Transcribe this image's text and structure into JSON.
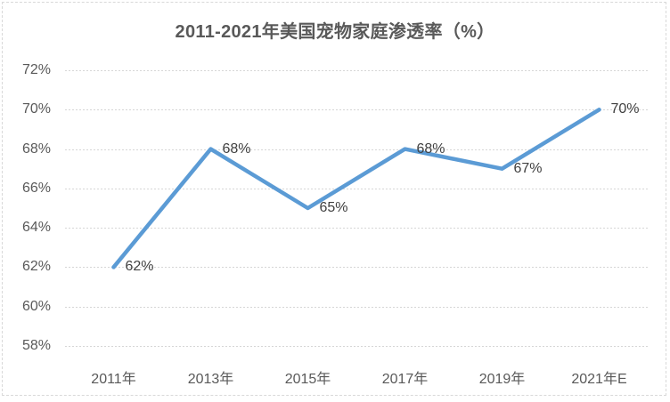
{
  "chart_data": {
    "type": "line",
    "title": "2011-2021年美国宠物家庭渗透率（%）",
    "categories": [
      "2011年",
      "2013年",
      "2015年",
      "2017年",
      "2019年",
      "2021年E"
    ],
    "values": [
      62,
      68,
      65,
      68,
      67,
      70
    ],
    "data_labels": [
      "62%",
      "68%",
      "65%",
      "68%",
      "67%",
      "70%"
    ],
    "yticks": [
      72,
      70,
      68,
      66,
      64,
      62,
      60,
      58
    ],
    "ytick_labels": [
      "72%",
      "70%",
      "68%",
      "66%",
      "64%",
      "62%",
      "60%",
      "58%"
    ],
    "ylim": [
      58,
      72
    ],
    "xlabel": "",
    "ylabel": "",
    "grid": true,
    "legend": "none",
    "colors": {
      "background": "#ffffff",
      "border": "#d9d9d9",
      "grid": "#d6d6d6",
      "title_text": "#595959",
      "axis_text": "#595959",
      "data_label_text": "#404040",
      "line": "#5b9bd5"
    }
  }
}
